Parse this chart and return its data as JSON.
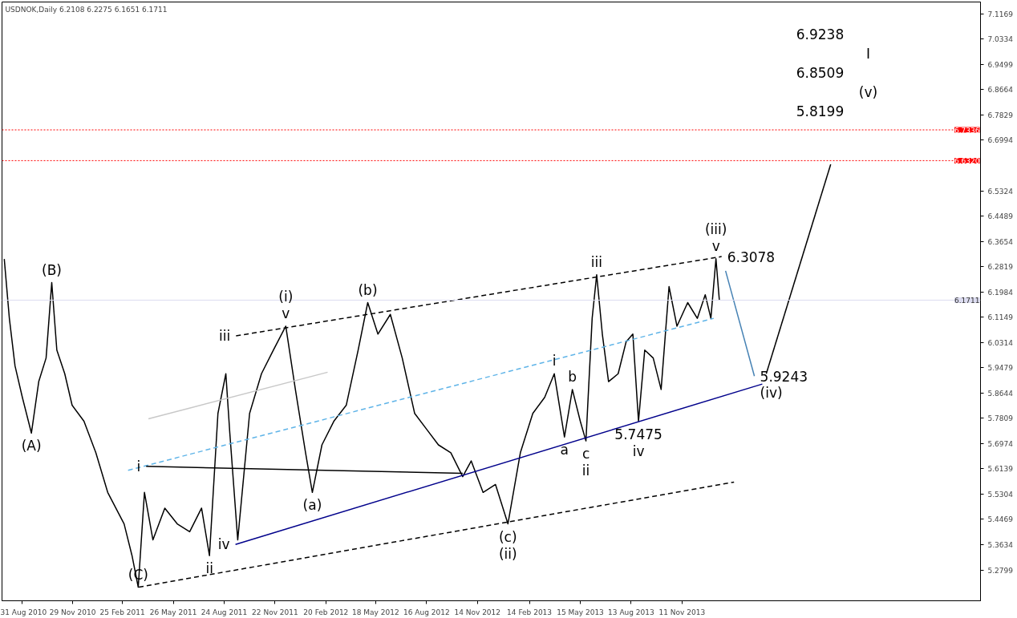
{
  "chart_data": {
    "type": "line",
    "title": "USDNOK,Daily  6.2108 6.2275 6.1651 6.1711",
    "xlim": [
      "2010-07-27",
      "2015-04-23"
    ],
    "ylim": [
      5.178,
      7.156
    ],
    "xticks": [
      {
        "value": "2010-08-31",
        "label": "31 Aug 2010"
      },
      {
        "value": "2010-11-29",
        "label": "29 Nov 2010"
      },
      {
        "value": "2011-02-25",
        "label": "25 Feb 2011"
      },
      {
        "value": "2011-05-26",
        "label": "26 May 2011"
      },
      {
        "value": "2011-08-24",
        "label": "24 Aug 2011"
      },
      {
        "value": "2011-11-22",
        "label": "22 Nov 2011"
      },
      {
        "value": "2012-02-20",
        "label": "20 Feb 2012"
      },
      {
        "value": "2012-05-18",
        "label": "18 May 2012"
      },
      {
        "value": "2012-08-16",
        "label": "16 Aug 2012"
      },
      {
        "value": "2012-11-14",
        "label": "14 Nov 2012"
      },
      {
        "value": "2013-02-14",
        "label": "14 Feb 2013"
      },
      {
        "value": "2013-05-15",
        "label": "15 May 2013"
      },
      {
        "value": "2013-08-13",
        "label": "13 Aug 2013"
      },
      {
        "value": "2013-11-11",
        "label": "11 Nov 2013"
      }
    ],
    "yticks": [
      7.1169,
      7.0334,
      6.9499,
      6.8664,
      6.7829,
      6.6994,
      6.5324,
      6.4489,
      6.3654,
      6.2819,
      6.1984,
      6.1149,
      6.0314,
      5.9479,
      5.8644,
      5.7809,
      5.6974,
      5.6139,
      5.5304,
      5.4469,
      5.3634,
      5.2799
    ],
    "grid": false,
    "series": [
      {
        "color": "#000000",
        "line_style": "solid",
        "x": [
          "2010-07-31",
          "2010-08-09",
          "2010-08-19",
          "2010-09-01",
          "2010-09-17",
          "2010-09-30",
          "2010-10-13",
          "2010-10-23",
          "2010-11-01",
          "2010-11-15",
          "2010-11-28",
          "2010-12-19",
          "2011-01-09",
          "2011-01-30",
          "2011-02-28",
          "2011-03-14",
          "2011-03-25",
          "2011-04-05",
          "2011-04-20",
          "2011-05-11",
          "2011-06-02",
          "2011-06-24",
          "2011-07-15",
          "2011-07-29",
          "2011-08-13",
          "2011-08-27",
          "2011-09-03",
          "2011-09-17",
          "2011-10-08",
          "2011-10-29",
          "2011-11-19",
          "2011-12-11",
          "2011-12-28",
          "2012-01-15",
          "2012-01-27",
          "2012-02-13",
          "2012-03-05",
          "2012-03-27",
          "2012-04-17",
          "2012-05-04",
          "2012-05-22",
          "2012-06-13",
          "2012-07-04",
          "2012-07-26",
          "2012-08-16",
          "2012-09-06",
          "2012-09-28",
          "2012-10-19",
          "2012-11-03",
          "2012-11-24",
          "2012-12-16",
          "2013-01-07",
          "2013-01-29",
          "2013-02-20",
          "2013-03-13",
          "2013-03-30",
          "2013-04-17",
          "2013-05-01",
          "2013-05-15",
          "2013-05-25",
          "2013-06-05",
          "2013-06-13",
          "2013-06-23",
          "2013-07-04",
          "2013-07-21",
          "2013-08-04",
          "2013-08-16",
          "2013-08-26",
          "2013-09-06",
          "2013-09-21",
          "2013-10-05",
          "2013-10-19",
          "2013-11-02",
          "2013-11-21",
          "2013-12-08",
          "2013-12-22",
          "2014-01-01",
          "2014-01-10",
          "2014-01-16"
        ],
        "values": [
          6.307,
          6.111,
          5.954,
          5.85,
          5.732,
          5.902,
          5.98,
          6.229,
          6.006,
          5.928,
          5.824,
          5.771,
          5.667,
          5.536,
          5.432,
          5.327,
          5.223,
          5.536,
          5.379,
          5.484,
          5.432,
          5.406,
          5.484,
          5.327,
          5.797,
          5.928,
          5.732,
          5.379,
          5.797,
          5.928,
          6.006,
          6.085,
          5.876,
          5.667,
          5.536,
          5.693,
          5.771,
          5.824,
          6.006,
          6.163,
          6.059,
          6.124,
          5.98,
          5.797,
          5.745,
          5.693,
          5.667,
          5.588,
          5.64,
          5.536,
          5.562,
          5.432,
          5.667,
          5.797,
          5.85,
          5.928,
          5.719,
          5.876,
          5.771,
          5.706,
          6.111,
          6.255,
          6.059,
          5.902,
          5.928,
          6.033,
          6.059,
          5.771,
          6.006,
          5.98,
          5.876,
          6.216,
          6.085,
          6.163,
          6.111,
          6.189,
          6.111,
          6.308,
          6.171
        ]
      },
      {
        "color": "#00008b",
        "line_style": "solid",
        "x": [
          "2011-09-13",
          "2014-04-02"
        ],
        "values": [
          5.364,
          5.894
        ]
      },
      {
        "color": "#000000",
        "line_style": "dashed",
        "x": [
          "2011-09-14",
          "2014-01-20"
        ],
        "values": [
          6.053,
          6.315
        ]
      },
      {
        "color": "#000000",
        "line_style": "dashed",
        "x": [
          "2011-03-26",
          "2014-02-11"
        ],
        "values": [
          5.223,
          5.57
        ]
      },
      {
        "color": "#5fb4e8",
        "line_style": "dashed",
        "x": [
          "2011-03-07",
          "2014-01-06"
        ],
        "values": [
          5.609,
          6.111
        ]
      },
      {
        "color": "#c8c8c8",
        "line_style": "solid",
        "x": [
          "2011-04-12",
          "2012-02-23"
        ],
        "values": [
          5.779,
          5.933
        ]
      },
      {
        "color": "#000000",
        "line_style": "solid",
        "x": [
          "2011-04-08",
          "2012-10-19"
        ],
        "values": [
          5.622,
          5.599
        ]
      },
      {
        "color": "#4682b4",
        "line_style": "solid",
        "x": [
          "2014-01-27",
          "2014-03-19"
        ],
        "values": [
          6.268,
          5.92
        ]
      },
      {
        "color": "#000000",
        "line_style": "solid",
        "x": [
          "2014-04-09",
          "2014-08-01"
        ],
        "values": [
          5.928,
          6.62
        ]
      }
    ],
    "ref_lines": [
      {
        "axis": "y",
        "value": 6.7336,
        "label": "6.7336",
        "color": "#ff0000",
        "line_style": "dotted"
      },
      {
        "axis": "y",
        "value": 6.632,
        "label": "6.6320",
        "color": "#ff0000",
        "line_style": "dotted"
      },
      {
        "axis": "y",
        "value": 6.1711,
        "label": "6.1711",
        "color": "#dcdcf0",
        "line_style": "solid"
      }
    ],
    "annotations": [
      {
        "text": "(B)",
        "x": "2010-10-23",
        "y": 6.229
      },
      {
        "text": "(A)",
        "x": "2010-09-17",
        "y": 5.732
      },
      {
        "text": "(C)",
        "x": "2011-03-25",
        "y": 5.223
      },
      {
        "text": "i",
        "x": "2011-04-08",
        "y": 5.622
      },
      {
        "text": "ii",
        "x": "2011-07-29",
        "y": 5.327
      },
      {
        "text": "iii",
        "x": "2011-09-14",
        "y": 6.053
      },
      {
        "text": "iv",
        "x": "2011-09-13",
        "y": 5.364
      },
      {
        "text": "v",
        "x": "2011-12-11",
        "y": 6.085
      },
      {
        "text": "(i)",
        "x": "2011-12-11",
        "y": 6.085
      },
      {
        "text": "(a)",
        "x": "2012-01-27",
        "y": 5.536
      },
      {
        "text": "(b)",
        "x": "2012-05-04",
        "y": 6.163
      },
      {
        "text": "(c)",
        "x": "2013-01-07",
        "y": 5.432
      },
      {
        "text": "(ii)",
        "x": "2013-01-07",
        "y": 5.432
      },
      {
        "text": "i",
        "x": "2013-03-30",
        "y": 5.928
      },
      {
        "text": "a",
        "x": "2013-04-17",
        "y": 5.719
      },
      {
        "text": "b",
        "x": "2013-05-01",
        "y": 5.876
      },
      {
        "text": "c",
        "x": "2013-05-25",
        "y": 5.706
      },
      {
        "text": "ii",
        "x": "2013-05-25",
        "y": 5.706
      },
      {
        "text": "iii",
        "x": "2013-06-13",
        "y": 6.255
      },
      {
        "text": "5.7475",
        "x": "2013-08-26",
        "y": 5.771
      },
      {
        "text": "iv",
        "x": "2013-08-26",
        "y": 5.771
      },
      {
        "text": "v",
        "x": "2014-01-10",
        "y": 6.308
      },
      {
        "text": "(iii)",
        "x": "2014-01-10",
        "y": 6.308
      },
      {
        "text": "6.3078",
        "x": "2014-01-20",
        "y": 6.315
      },
      {
        "text": "5.9243",
        "x": "2014-03-19",
        "y": 5.92
      },
      {
        "text": "(iv)",
        "x": "2014-03-19",
        "y": 5.92
      },
      "6.9238",
      "I",
      "6.8509",
      "(v)",
      "5.8199"
    ]
  }
}
